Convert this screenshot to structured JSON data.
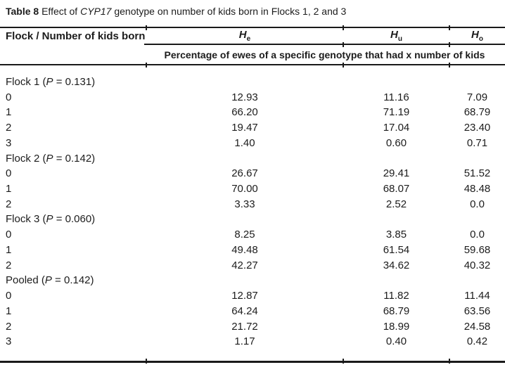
{
  "caption": {
    "label": "Table 8",
    "pre_gene": " Effect of ",
    "gene": "CYP17",
    "post_gene": " genotype on number of kids born in Flocks 1, 2 and 3"
  },
  "table": {
    "stub_header": "Flock / Number of kids born",
    "columns": [
      {
        "symbol": "H",
        "subscript": "e"
      },
      {
        "symbol": "H",
        "subscript": "u"
      },
      {
        "symbol": "H",
        "subscript": "o"
      }
    ],
    "span_header": "Percentage of ewes of a specific genotype that had x number of kids",
    "sections": [
      {
        "label_open": "Flock 1 (",
        "p_symbol": "P",
        "label_close": " = 0.131)",
        "rows": [
          {
            "kids": "0",
            "values": [
              "12.93",
              "11.16",
              "7.09"
            ]
          },
          {
            "kids": "1",
            "values": [
              "66.20",
              "71.19",
              "68.79"
            ]
          },
          {
            "kids": "2",
            "values": [
              "19.47",
              "17.04",
              "23.40"
            ]
          },
          {
            "kids": "3",
            "values": [
              "1.40",
              "0.60",
              "0.71"
            ]
          }
        ]
      },
      {
        "label_open": "Flock 2 (",
        "p_symbol": "P",
        "label_close": " = 0.142)",
        "rows": [
          {
            "kids": "0",
            "values": [
              "26.67",
              "29.41",
              "51.52"
            ]
          },
          {
            "kids": "1",
            "values": [
              "70.00",
              "68.07",
              "48.48"
            ]
          },
          {
            "kids": "2",
            "values": [
              "3.33",
              "2.52",
              "0.0"
            ]
          }
        ]
      },
      {
        "label_open": "Flock 3 (",
        "p_symbol": "P",
        "label_close": " = 0.060)",
        "rows": [
          {
            "kids": "0",
            "values": [
              "8.25",
              "3.85",
              "0.0"
            ]
          },
          {
            "kids": "1",
            "values": [
              "49.48",
              "61.54",
              "59.68"
            ]
          },
          {
            "kids": "2",
            "values": [
              "42.27",
              "34.62",
              "40.32"
            ]
          }
        ]
      },
      {
        "label_open": "Pooled (",
        "p_symbol": "P",
        "label_close": " = 0.142)",
        "rows": [
          {
            "kids": "0",
            "values": [
              "12.87",
              "11.82",
              "11.44"
            ]
          },
          {
            "kids": "1",
            "values": [
              "64.24",
              "68.79",
              "63.56"
            ]
          },
          {
            "kids": "2",
            "values": [
              "21.72",
              "18.99",
              "24.58"
            ]
          },
          {
            "kids": "3",
            "values": [
              "1.17",
              "0.40",
              "0.42"
            ]
          }
        ]
      }
    ]
  },
  "colors": {
    "background": "#ffffff",
    "text": "#1c1c1c",
    "rule": "#1a1a1a"
  }
}
